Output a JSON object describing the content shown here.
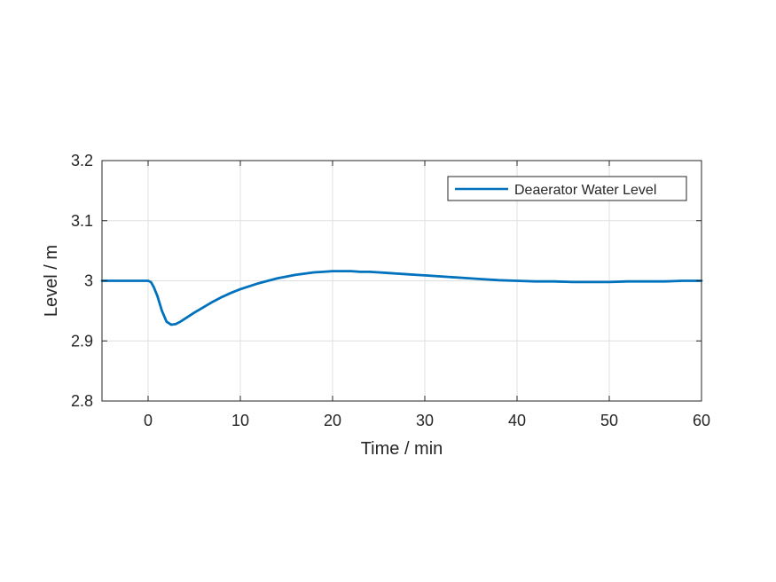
{
  "chart_data": {
    "type": "line",
    "title": "",
    "xlabel": "Time / min",
    "ylabel": "Level / m",
    "xlim": [
      -5,
      60
    ],
    "ylim": [
      2.8,
      3.2
    ],
    "xticks": [
      0,
      10,
      20,
      30,
      40,
      50,
      60
    ],
    "xtick_labels": [
      "0",
      "10",
      "20",
      "30",
      "40",
      "50",
      "60"
    ],
    "yticks": [
      2.8,
      2.9,
      3.0,
      3.1,
      3.2
    ],
    "ytick_labels": [
      "2.8",
      "2.9",
      "3",
      "3.1",
      "3.2"
    ],
    "grid": true,
    "legend_position": "top-right",
    "series": [
      {
        "name": "Deaerator Water Level",
        "color": "#0072BD",
        "x": [
          -5,
          0,
          0.3,
          0.6,
          1,
          1.5,
          2,
          2.5,
          3,
          3.5,
          4,
          5,
          6,
          7,
          8,
          9,
          10,
          11,
          12,
          13,
          14,
          15,
          16,
          17,
          18,
          19,
          20,
          21,
          22,
          23,
          24,
          25,
          26,
          27,
          28,
          29,
          30,
          32,
          34,
          36,
          38,
          40,
          42,
          44,
          46,
          48,
          50,
          52,
          54,
          56,
          58,
          60
        ],
        "y": [
          3.0,
          3.0,
          2.998,
          2.99,
          2.975,
          2.95,
          2.932,
          2.927,
          2.928,
          2.932,
          2.937,
          2.947,
          2.956,
          2.965,
          2.973,
          2.98,
          2.986,
          2.991,
          2.996,
          3.0,
          3.004,
          3.007,
          3.01,
          3.012,
          3.014,
          3.015,
          3.016,
          3.016,
          3.016,
          3.015,
          3.015,
          3.014,
          3.013,
          3.012,
          3.011,
          3.01,
          3.009,
          3.007,
          3.005,
          3.003,
          3.001,
          3.0,
          2.999,
          2.999,
          2.998,
          2.998,
          2.998,
          2.999,
          2.999,
          2.999,
          3.0,
          3.0
        ]
      }
    ]
  }
}
